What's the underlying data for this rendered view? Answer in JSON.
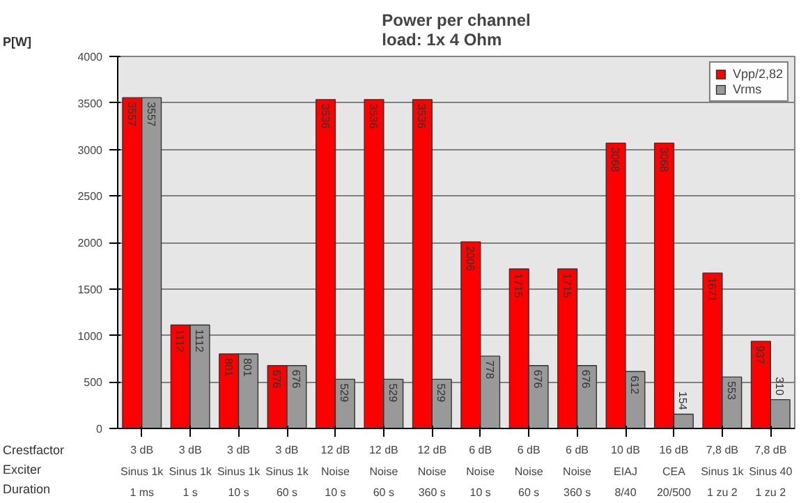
{
  "chart_data": {
    "type": "bar",
    "title": "Power per channel",
    "subtitle": "load:  1x 4 Ohm",
    "ylabel": "P[W]",
    "categories": [
      "3 dB\nSinus 1k\n1 ms",
      "3 dB\nSinus 1k\n1 s",
      "3 dB\nSinus 1k\n10 s",
      "3 dB\nSinus 1k\n60 s",
      "12 dB\nNoise\n10 s",
      "12 dB\nNoise\n60 s",
      "12 dB\nNoise\n360 s",
      "6 dB\nNoise\n10 s",
      "6 dB\nNoise\n60 s",
      "6 dB\nNoise\n360 s",
      "10 dB\nEIAJ\n8/40",
      "16 dB\nCEA\n20/500",
      "7,8 dB\nSinus 1k\n1 zu 2",
      "7,8 dB\nSinus 40\n1 zu 2"
    ],
    "series": [
      {
        "name": "Vpp/2,82",
        "color": "#ff0000",
        "values": [
          3557,
          1112,
          801,
          676,
          3536,
          3536,
          3536,
          2006,
          1715,
          1715,
          3068,
          3068,
          1671,
          937
        ]
      },
      {
        "name": "Vrms",
        "color": "#999999",
        "values": [
          3557,
          1112,
          801,
          676,
          529,
          529,
          529,
          778,
          676,
          676,
          612,
          154,
          553,
          310
        ]
      }
    ],
    "ylim": [
      0,
      4000
    ],
    "yticks": [
      0,
      500,
      1000,
      1500,
      2000,
      2500,
      3000,
      3500,
      4000
    ],
    "grid": "y",
    "legend": "top right",
    "data_labels": true,
    "annotations": [
      "Crestfactor",
      "Exciter",
      "Duration"
    ]
  }
}
